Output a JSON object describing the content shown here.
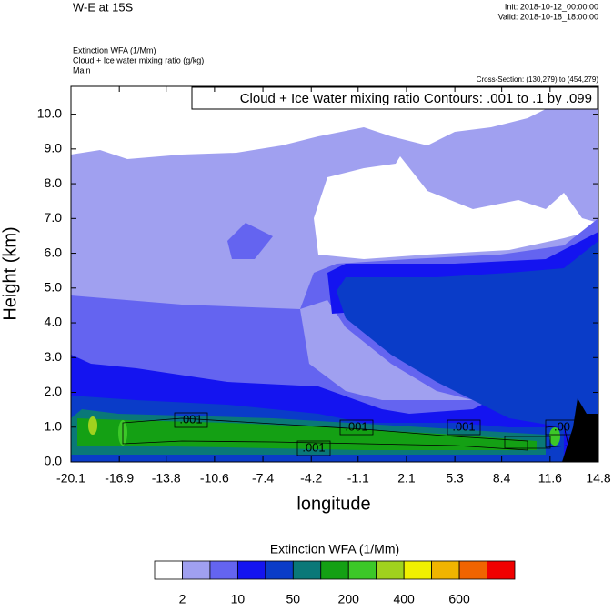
{
  "chart_data": {
    "type": "contour",
    "title": "W-E at 15S",
    "init_label": "Init: 2018-10-12_00:00:00",
    "valid_label": "Valid: 2018-10-18_18:00:00",
    "field_label": "Extinction WFA   (1/Mm)",
    "contour_field_label": "Cloud + Ice water mixing ratio   (g/kg)",
    "main_label": "Main",
    "cross_section": "Cross-Section: (130,279) to (454,279)",
    "contour_info": "Cloud + Ice water mixing ratio Contours: .001 to .1 by .099",
    "xlabel": "longitude",
    "ylabel": "Height (km)",
    "xlim": [
      -20.1,
      14.8
    ],
    "xticks": [
      -20.1,
      -16.9,
      -13.8,
      -10.6,
      -7.4,
      -4.2,
      -1.1,
      2.1,
      5.3,
      8.4,
      11.6,
      14.8
    ],
    "ylim": [
      0,
      10.8
    ],
    "yticks": [
      {
        "value": 0,
        "label": "0.0"
      },
      {
        "value": 1,
        "label": "1.0"
      },
      {
        "value": 2,
        "label": "2.0"
      },
      {
        "value": 3,
        "label": "3.0"
      },
      {
        "value": 4,
        "label": "4.0"
      },
      {
        "value": 5,
        "label": "5.0"
      },
      {
        "value": 6,
        "label": "6.0"
      },
      {
        "value": 7,
        "label": "7.0"
      },
      {
        "value": 8,
        "label": "8.0"
      },
      {
        "value": 9,
        "label": "9.0"
      },
      {
        "value": 10,
        "label": "10.0"
      }
    ],
    "contour_labels": [
      ".001",
      ".001",
      ".001",
      ".001",
      ".00"
    ],
    "colorbar": {
      "title": "Extinction WFA  (1/Mm)",
      "colors": [
        "#ffffff",
        "#a0a0f0",
        "#6464f0",
        "#1414f0",
        "#0a3cc8",
        "#0a7878",
        "#14a014",
        "#3cc828",
        "#a0d21e",
        "#f0f000",
        "#f0b400",
        "#f06400",
        "#f00000"
      ],
      "levels": [
        2,
        10,
        50,
        200,
        400,
        600
      ]
    }
  }
}
